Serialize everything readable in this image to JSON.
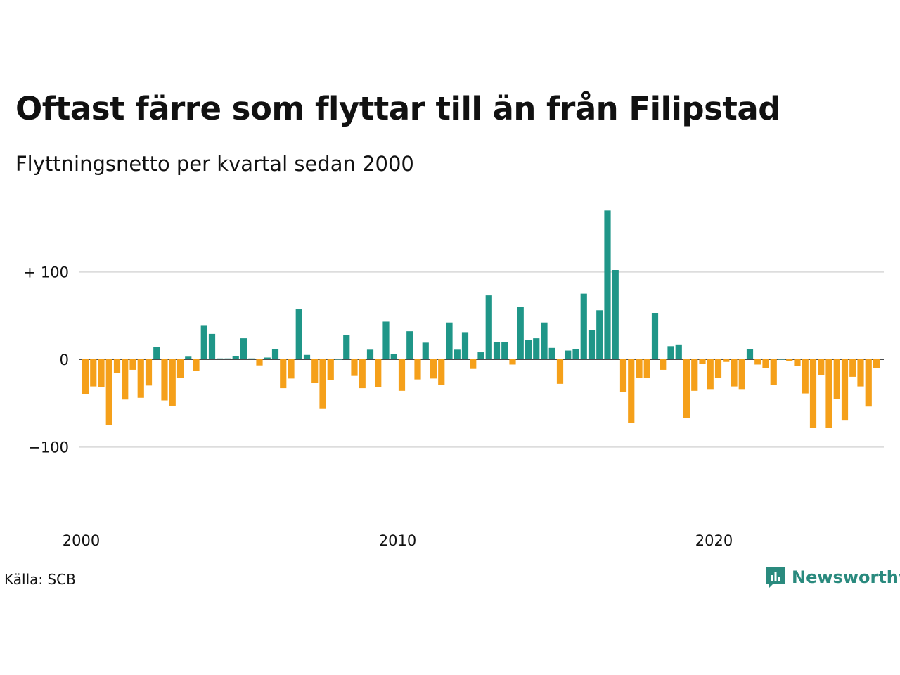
{
  "title": "Oftast färre som flyttar till än från Filipstad",
  "subtitle": "Flyttningsnetto per kvartal sedan 2000",
  "source": "Källa: SCB",
  "brand": {
    "name": "Newsworthy",
    "icon": "newsworthy-logo-icon",
    "color": "#2a8a7e"
  },
  "colors": {
    "positive": "#1f9688",
    "negative": "#f5a01a",
    "grid": "#dddddd",
    "zero_line": "#111111"
  },
  "chart_data": {
    "type": "bar",
    "title": "Oftast färre som flyttar till än från Filipstad",
    "subtitle": "Flyttningsnetto per kvartal sedan 2000",
    "xlabel": "",
    "ylabel": "",
    "x_tick_labels": [
      "2000",
      "2010",
      "2020"
    ],
    "y_ticks": [
      {
        "value": 100,
        "label": "+ 100"
      },
      {
        "value": 0,
        "label": "0"
      },
      {
        "value": -100,
        "label": "−100"
      }
    ],
    "ylim": [
      -190,
      175
    ],
    "grid": true,
    "legend": "none",
    "start_year": 2000,
    "periods_per_year": 4,
    "series": [
      {
        "values": [
          -40,
          -31,
          -32,
          -75,
          -16,
          -46,
          -12,
          -44,
          -30,
          14,
          -47,
          -53,
          -21,
          3,
          -13,
          39,
          29,
          1,
          1,
          4,
          24,
          1,
          -7,
          2,
          12,
          -33,
          -22,
          57,
          5,
          -27,
          -56,
          -24,
          0,
          28,
          -19,
          -33,
          11,
          -32,
          43,
          6,
          -36,
          32,
          -23,
          19,
          -22,
          -29,
          42,
          11,
          31,
          -11,
          8,
          73,
          20,
          20,
          -6,
          60,
          22,
          24,
          42,
          13,
          -28,
          10,
          12,
          75,
          33,
          56,
          170,
          102,
          -37,
          -73,
          -21,
          -21,
          53,
          -12,
          15,
          17,
          -67,
          -36,
          -5,
          -34,
          -21,
          -3,
          -31,
          -34,
          12,
          -6,
          -10,
          -29,
          0,
          -2,
          -8,
          -39,
          -78,
          -18,
          -78,
          -45,
          -70,
          -20,
          -31,
          -54,
          -10
        ]
      }
    ]
  }
}
